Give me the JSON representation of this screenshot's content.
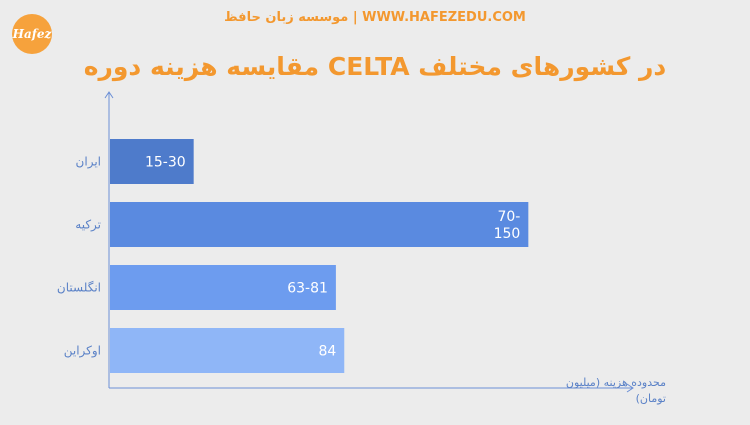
{
  "header": {
    "logo_text": "Hafez",
    "site_line": "موسسه زبان حافظ | WWW.HAFEZEDU.COM"
  },
  "chart_data": {
    "type": "bar",
    "orientation": "horizontal",
    "title": "مقایسه هزینه دوره CELTA در کشورهای مختلف",
    "xlabel_lines": [
      "محدوده هزینه (میلیون",
      "(تومان"
    ],
    "categories": [
      "ایران",
      "ترکیه",
      "انگلستان",
      "اوکراین"
    ],
    "values": [
      30,
      150,
      81,
      84
    ],
    "range_low": [
      15,
      70,
      63,
      84
    ],
    "data_labels": [
      [
        "15-30"
      ],
      [
        "70-",
        "150"
      ],
      [
        "63-81"
      ],
      [
        "84"
      ]
    ],
    "bar_colors": [
      "#4e7bcb",
      "#5a8ae0",
      "#6d9cef",
      "#8fb6f7"
    ],
    "xlim": [
      0,
      180
    ],
    "grid": false,
    "legend": "none"
  }
}
